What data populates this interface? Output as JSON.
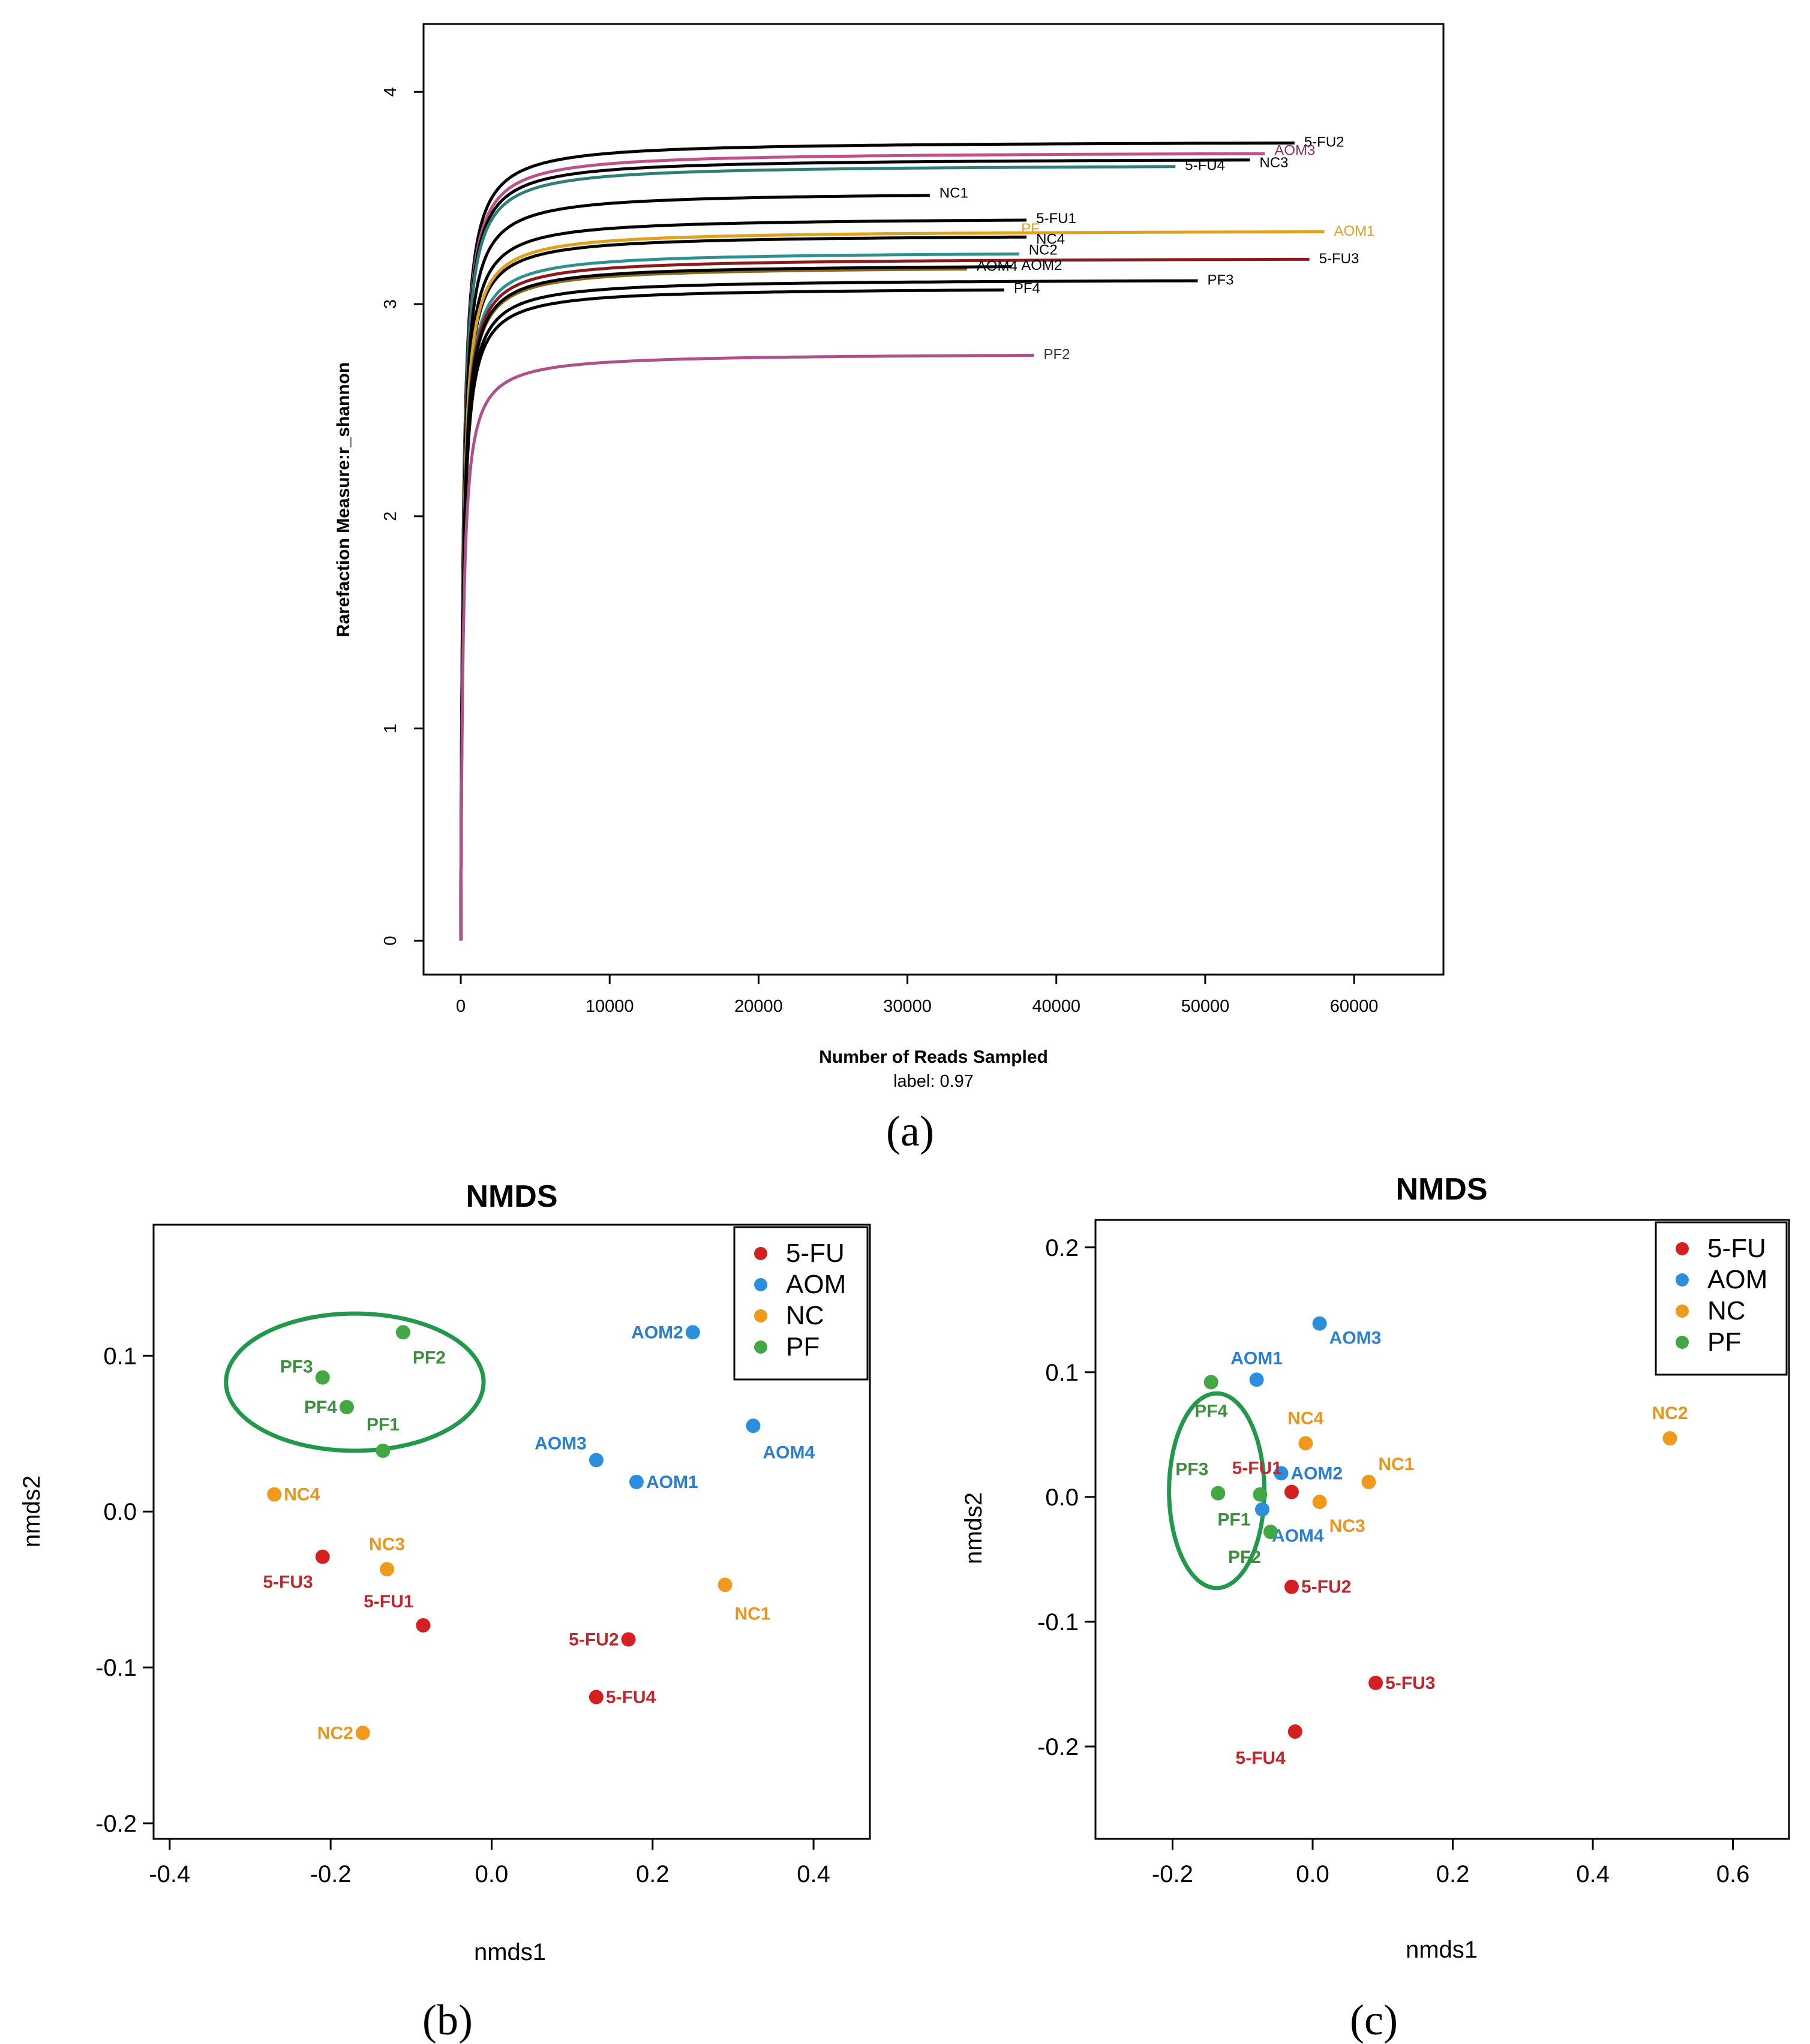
{
  "chart_data": [
    {
      "type": "line",
      "panel_label": "(a)",
      "title": "",
      "xlabel": "Number of Reads Sampled",
      "sublabel": "label: 0.97",
      "ylabel": "Rarefaction Measure:r_shannon",
      "xlim": [
        -2500,
        66000
      ],
      "ylim": [
        -0.16,
        4.32
      ],
      "xticks": [
        0,
        10000,
        20000,
        30000,
        40000,
        50000,
        60000
      ],
      "xtick_labels": [
        "0",
        "10000",
        "20000",
        "30000",
        "40000",
        "50000",
        "60000"
      ],
      "yticks": [
        0,
        1,
        2,
        3,
        4
      ],
      "ytick_labels": [
        "0",
        "1",
        "2",
        "3",
        "4"
      ],
      "series": [
        {
          "name": "5-FU2",
          "end_reads": 56000,
          "plateau": 3.77,
          "color": "#000000",
          "label_color": "#000000"
        },
        {
          "name": "AOM3",
          "end_reads": 54000,
          "plateau": 3.72,
          "color": "#c0508a",
          "label_color": "#8b3060"
        },
        {
          "name": "NC3",
          "end_reads": 53000,
          "plateau": 3.69,
          "color": "#000000",
          "label_color": "#000000"
        },
        {
          "name": "5-FU4",
          "end_reads": 48000,
          "plateau": 3.66,
          "color": "#2f7f74",
          "label_color": "#000000"
        },
        {
          "name": "NC1",
          "end_reads": 31500,
          "plateau": 3.53,
          "color": "#000000",
          "label_color": "#000000"
        },
        {
          "name": "5-FU1",
          "end_reads": 38000,
          "plateau": 3.41,
          "color": "#000000",
          "label_color": "#000000"
        },
        {
          "name": "PF",
          "end_reads": 37000,
          "plateau": 3.35,
          "color": "#e0a020",
          "label_color": "#e0a020"
        },
        {
          "name": "NC4",
          "end_reads": 38000,
          "plateau": 3.33,
          "color": "#000000",
          "label_color": "#000000"
        },
        {
          "name": "AOM1",
          "end_reads": 58000,
          "plateau": 3.35,
          "color": "#e0a020",
          "label_color": "#e0a020"
        },
        {
          "name": "NC2",
          "end_reads": 37500,
          "plateau": 3.25,
          "color": "#2f9090",
          "label_color": "#000000"
        },
        {
          "name": "5-FU3",
          "end_reads": 57000,
          "plateau": 3.22,
          "color": "#8b1a1a",
          "label_color": "#000000"
        },
        {
          "name": "AOM4",
          "end_reads": 34000,
          "plateau": 3.18,
          "color": "#8b6a20",
          "label_color": "#000000"
        },
        {
          "name": "AOM2",
          "end_reads": 37000,
          "plateau": 3.19,
          "color": "#000000",
          "label_color": "#000000"
        },
        {
          "name": "PF3",
          "end_reads": 49500,
          "plateau": 3.12,
          "color": "#000000",
          "label_color": "#000000"
        },
        {
          "name": "PF4",
          "end_reads": 36500,
          "plateau": 3.08,
          "color": "#000000",
          "label_color": "#000000"
        },
        {
          "name": "PF2",
          "end_reads": 38500,
          "plateau": 2.77,
          "color": "#b0508a",
          "label_color": "#333333"
        }
      ]
    },
    {
      "type": "scatter",
      "panel_label": "(b)",
      "title": "NMDS",
      "xlabel": "nmds1",
      "ylabel": "nmds2",
      "xlim": [
        -0.42,
        0.47
      ],
      "ylim": [
        -0.21,
        0.184
      ],
      "xticks": [
        -0.4,
        -0.2,
        0.0,
        0.2,
        0.4
      ],
      "xtick_labels": [
        "-0.4",
        "-0.2",
        "0.0",
        "0.2",
        "0.4"
      ],
      "yticks": [
        -0.2,
        -0.1,
        0.0,
        0.1
      ],
      "ytick_labels": [
        "-0.2",
        "-0.1",
        "0.0",
        "0.1"
      ],
      "legend": [
        "5-FU",
        "AOM",
        "NC",
        "PF"
      ],
      "legend_position": "top-right",
      "ellipse": {
        "cx": -0.17,
        "cy": 0.083,
        "rx": 0.16,
        "ry": 0.044,
        "group": "PF"
      },
      "points": [
        {
          "label": "PF3",
          "group": "PF",
          "x": -0.21,
          "y": 0.086,
          "label_side": "left",
          "label_dy": -18
        },
        {
          "label": "PF2",
          "group": "PF",
          "x": -0.11,
          "y": 0.115,
          "label_side": "right",
          "label_dy": 42
        },
        {
          "label": "PF4",
          "group": "PF",
          "x": -0.18,
          "y": 0.067,
          "label_side": "left",
          "label_dy": 0
        },
        {
          "label": "PF1",
          "group": "PF",
          "x": -0.135,
          "y": 0.039,
          "label_side": "center",
          "label_dy": -44
        },
        {
          "label": "AOM2",
          "group": "AOM",
          "x": 0.25,
          "y": 0.115,
          "label_side": "left",
          "label_dy": 0
        },
        {
          "label": "AOM4",
          "group": "AOM",
          "x": 0.325,
          "y": 0.055,
          "label_side": "right",
          "label_dy": 44
        },
        {
          "label": "AOM3",
          "group": "AOM",
          "x": 0.13,
          "y": 0.033,
          "label_side": "left",
          "label_dy": -28
        },
        {
          "label": "AOM1",
          "group": "AOM",
          "x": 0.18,
          "y": 0.019,
          "label_side": "right",
          "label_dy": 0
        },
        {
          "label": "NC4",
          "group": "NC",
          "x": -0.27,
          "y": 0.011,
          "label_side": "right",
          "label_dy": 0
        },
        {
          "label": "NC3",
          "group": "NC",
          "x": -0.13,
          "y": -0.037,
          "label_side": "center",
          "label_dy": -42
        },
        {
          "label": "NC1",
          "group": "NC",
          "x": 0.29,
          "y": -0.047,
          "label_side": "right",
          "label_dy": 48
        },
        {
          "label": "NC2",
          "group": "NC",
          "x": -0.16,
          "y": -0.142,
          "label_side": "left",
          "label_dy": 0
        },
        {
          "label": "5-FU3",
          "group": "5-FU",
          "x": -0.21,
          "y": -0.029,
          "label_side": "left",
          "label_dy": 42
        },
        {
          "label": "5-FU1",
          "group": "5-FU",
          "x": -0.085,
          "y": -0.073,
          "label_side": "left",
          "label_dy": -40
        },
        {
          "label": "5-FU2",
          "group": "5-FU",
          "x": 0.17,
          "y": -0.082,
          "label_side": "left",
          "label_dy": 0
        },
        {
          "label": "5-FU4",
          "group": "5-FU",
          "x": 0.13,
          "y": -0.119,
          "label_side": "right",
          "label_dy": 0
        }
      ]
    },
    {
      "type": "scatter",
      "panel_label": "(c)",
      "title": "NMDS",
      "xlabel": "nmds1",
      "ylabel": "nmds2",
      "xlim": [
        -0.31,
        0.68
      ],
      "ylim": [
        -0.274,
        0.222
      ],
      "xticks": [
        -0.2,
        0.0,
        0.2,
        0.4,
        0.6
      ],
      "xtick_labels": [
        "-0.2",
        "0.0",
        "0.2",
        "0.4",
        "0.6"
      ],
      "yticks": [
        -0.2,
        -0.1,
        0.0,
        0.1,
        0.2
      ],
      "ytick_labels": [
        "-0.2",
        "-0.1",
        "0.0",
        "0.1",
        "0.2"
      ],
      "legend": [
        "5-FU",
        "AOM",
        "NC",
        "PF"
      ],
      "legend_position": "top-right",
      "ellipse": {
        "cx": -0.137,
        "cy": 0.005,
        "rx": 0.068,
        "ry": 0.078,
        "group": "PF"
      },
      "points": [
        {
          "label": "AOM3",
          "group": "AOM",
          "x": 0.01,
          "y": 0.139,
          "label_side": "right",
          "label_dy": 24
        },
        {
          "label": "AOM1",
          "group": "AOM",
          "x": -0.08,
          "y": 0.094,
          "label_side": "center",
          "label_dy": -36
        },
        {
          "label": "PF4",
          "group": "PF",
          "x": -0.145,
          "y": 0.092,
          "label_side": "center",
          "label_dy": 48
        },
        {
          "label": "NC4",
          "group": "NC",
          "x": -0.01,
          "y": 0.043,
          "label_side": "center",
          "label_dy": -42
        },
        {
          "label": "NC2",
          "group": "NC",
          "x": 0.51,
          "y": 0.047,
          "label_side": "center",
          "label_dy": -42
        },
        {
          "label": "NC1",
          "group": "NC",
          "x": 0.08,
          "y": 0.012,
          "label_side": "right",
          "label_dy": -30
        },
        {
          "label": "AOM2",
          "group": "AOM",
          "x": -0.045,
          "y": 0.019,
          "label_side": "right",
          "label_dy": 0
        },
        {
          "label": "5-FU1",
          "group": "5-FU",
          "x": -0.03,
          "y": 0.004,
          "label_side": "left",
          "label_dy": -40
        },
        {
          "label": "PF3",
          "group": "PF",
          "x": -0.135,
          "y": 0.003,
          "label_side": "left",
          "label_dy": -40
        },
        {
          "label": "NC3",
          "group": "NC",
          "x": 0.01,
          "y": -0.004,
          "label_side": "right",
          "label_dy": 40
        },
        {
          "label": "PF1",
          "group": "PF",
          "x": -0.075,
          "y": 0.002,
          "label_side": "left",
          "label_dy": 42
        },
        {
          "label": "AOM4",
          "group": "AOM",
          "x": -0.072,
          "y": -0.01,
          "label_side": "right",
          "label_dy": 44
        },
        {
          "label": "PF2",
          "group": "PF",
          "x": -0.06,
          "y": -0.028,
          "label_side": "left",
          "label_dy": 42
        },
        {
          "label": "5-FU2",
          "group": "5-FU",
          "x": -0.03,
          "y": -0.072,
          "label_side": "right",
          "label_dy": 0
        },
        {
          "label": "5-FU3",
          "group": "5-FU",
          "x": 0.09,
          "y": -0.149,
          "label_side": "right",
          "label_dy": 0
        },
        {
          "label": "5-FU4",
          "group": "5-FU",
          "x": -0.025,
          "y": -0.188,
          "label_side": "left",
          "label_dy": 44
        }
      ]
    }
  ],
  "colors": {
    "5-FU": "#d42020",
    "AOM": "#2b8fde",
    "NC": "#ef9a1c",
    "PF": "#43a843",
    "label_5-FU": "#c0282e",
    "label_AOM": "#2a7fd0",
    "label_NC": "#e8961e",
    "label_PF": "#3d8f3d",
    "ellipse": "#22994a"
  }
}
